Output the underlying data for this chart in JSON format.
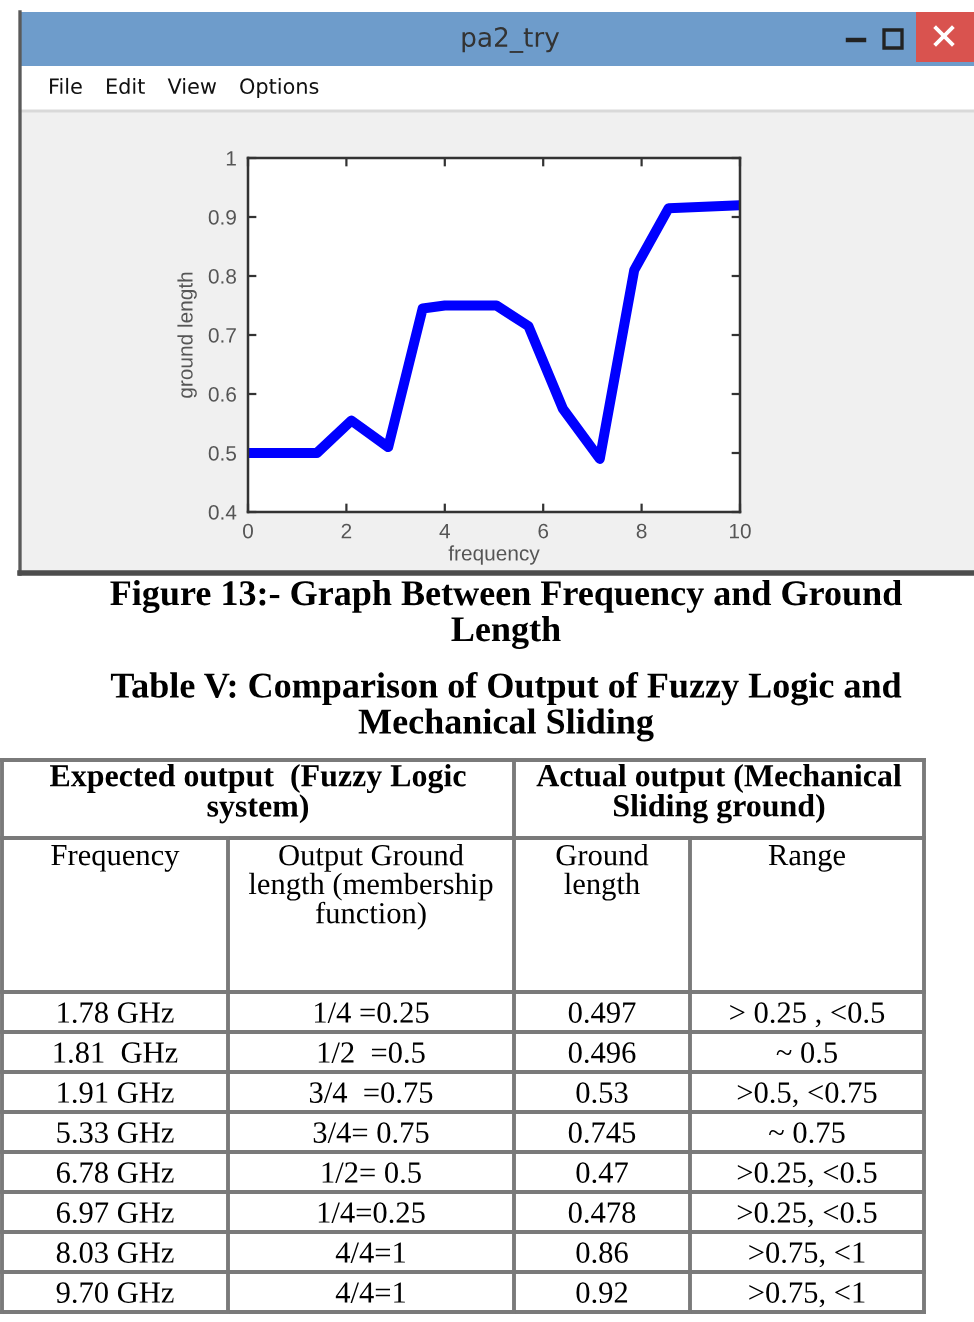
{
  "chart_data": [
    {
      "type": "line",
      "title": "Figure 13:- Graph Between Frequency and Ground Length",
      "xlabel": "frequency",
      "ylabel": "ground length",
      "x": [
        0,
        1.4,
        2.1,
        2.85,
        3.55,
        4.0,
        5.05,
        5.7,
        6.4,
        7.15,
        7.85,
        8.55,
        10
      ],
      "values": [
        0.5,
        0.5,
        0.555,
        0.51,
        0.745,
        0.75,
        0.75,
        0.715,
        0.575,
        0.49,
        0.81,
        0.915,
        0.92
      ],
      "color": "#0000ff",
      "line_style": "solid",
      "xlim": [
        0,
        10
      ],
      "xticks": [
        0,
        2,
        4,
        6,
        8,
        10
      ],
      "ylim": [
        0.4,
        1
      ],
      "yticks": [
        0.4,
        0.5,
        0.6,
        0.7,
        0.8,
        0.9,
        1
      ],
      "annotations": [
        "pa2_try",
        "File",
        "Edit",
        "View",
        "Options"
      ]
    },
    {
      "type": "other",
      "title": "Table V: Comparison of Output of Fuzzy Logic and Mechanical Sliding",
      "annotations": [
        "Expected output  (Fuzzy Logic system)",
        "Actual output (Mechanical Sliding ground)"
      ],
      "categories": [
        "Frequency",
        "Output Ground length (membership function)",
        "Ground length",
        "Range"
      ],
      "cell_labels": [
        [
          "1.78 GHz",
          "1/4 =0.25",
          "0.497",
          "> 0.25 , <0.5"
        ],
        [
          "1.81  GHz",
          "1/2  =0.5",
          "0.496",
          "~ 0.5"
        ],
        [
          "1.91 GHz",
          "3/4  =0.75",
          "0.53",
          ">0.5, <0.75"
        ],
        [
          "5.33 GHz",
          "3/4= 0.75",
          "0.745",
          "~ 0.75"
        ],
        [
          "6.78 GHz",
          "1/2= 0.5",
          "0.47",
          ">0.25, <0.5"
        ],
        [
          "6.97 GHz",
          "1/4=0.25",
          "0.478",
          ">0.25, <0.5"
        ],
        [
          "8.03 GHz",
          "4/4=1",
          "0.86",
          ">0.75, <1"
        ],
        [
          "9.70 GHz",
          "4/4=1",
          "0.92",
          ">0.75, <1"
        ]
      ]
    }
  ]
}
